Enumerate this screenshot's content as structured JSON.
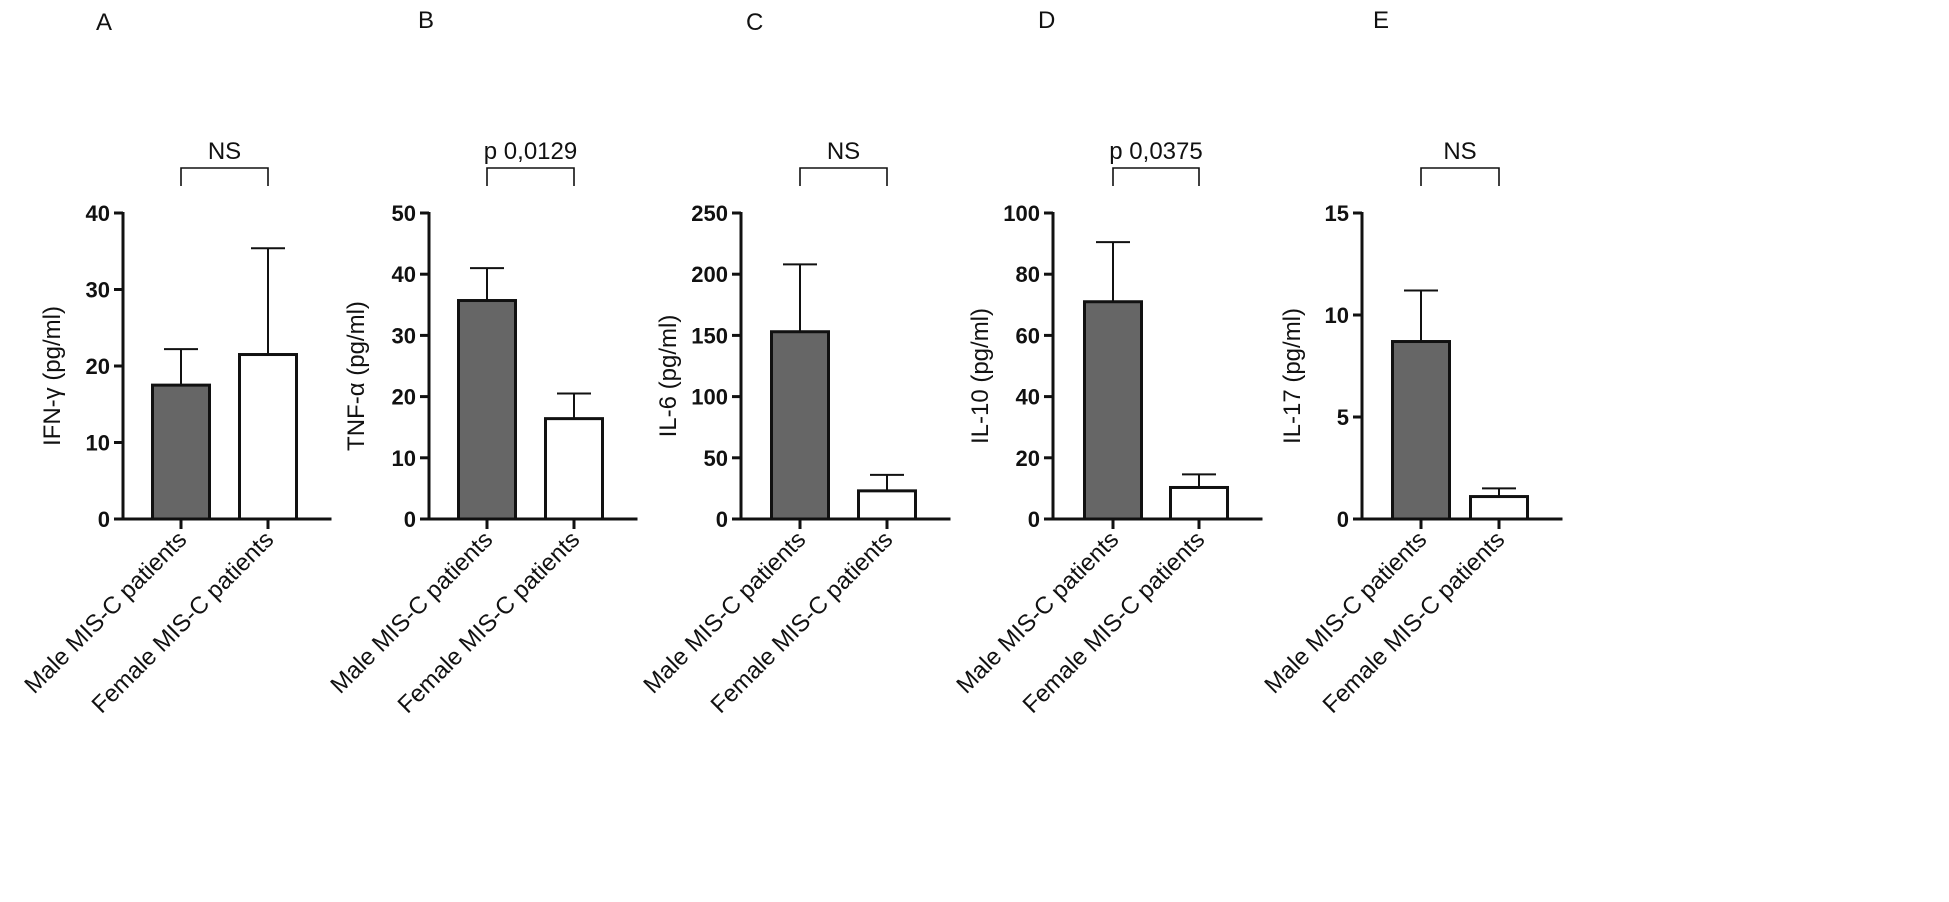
{
  "chart_data": [
    {
      "panel": "A",
      "type": "bar",
      "ylabel": "IFN-γ (pg/ml)",
      "ylim": [
        0,
        40
      ],
      "yticks": [
        0,
        10,
        20,
        30,
        40
      ],
      "categories": [
        "Male MIS-C patients",
        "Female MIS-C patients"
      ],
      "values": [
        17.5,
        21.5
      ],
      "errors": [
        4.7,
        13.9
      ],
      "colors": [
        "#666666",
        "#ffffff"
      ],
      "significance": "NS"
    },
    {
      "panel": "B",
      "type": "bar",
      "ylabel": "TNF-α (pg/ml)",
      "ylim": [
        0,
        50
      ],
      "yticks": [
        0,
        10,
        20,
        30,
        40,
        50
      ],
      "categories": [
        "Male MIS-C patients",
        "Female MIS-C patients"
      ],
      "values": [
        35.7,
        16.4
      ],
      "errors": [
        5.3,
        4.1
      ],
      "colors": [
        "#666666",
        "#ffffff"
      ],
      "significance": "p 0,0129"
    },
    {
      "panel": "C",
      "type": "bar",
      "ylabel": "IL-6 (pg/ml)",
      "ylim": [
        0,
        250
      ],
      "yticks": [
        0,
        50,
        100,
        150,
        200,
        250
      ],
      "categories": [
        "Male MIS-C patients",
        "Female MIS-C patients"
      ],
      "values": [
        153,
        23
      ],
      "errors": [
        55,
        13
      ],
      "colors": [
        "#666666",
        "#ffffff"
      ],
      "significance": "NS"
    },
    {
      "panel": "D",
      "type": "bar",
      "ylabel": "IL-10 (pg/ml)",
      "ylim": [
        0,
        100
      ],
      "yticks": [
        0,
        20,
        40,
        60,
        80,
        100
      ],
      "categories": [
        "Male MIS-C patients",
        "Female MIS-C patients"
      ],
      "values": [
        71,
        10.3
      ],
      "errors": [
        19.5,
        4.3
      ],
      "colors": [
        "#666666",
        "#ffffff"
      ],
      "significance": "p 0,0375"
    },
    {
      "panel": "E",
      "type": "bar",
      "ylabel": "IL-17 (pg/ml)",
      "ylim": [
        0,
        15
      ],
      "yticks": [
        0,
        5,
        10,
        15
      ],
      "categories": [
        "Male MIS-C patients",
        "Female MIS-C patients"
      ],
      "values": [
        8.7,
        1.1
      ],
      "errors": [
        2.5,
        0.4
      ],
      "colors": [
        "#666666",
        "#ffffff"
      ],
      "significance": "NS"
    }
  ]
}
